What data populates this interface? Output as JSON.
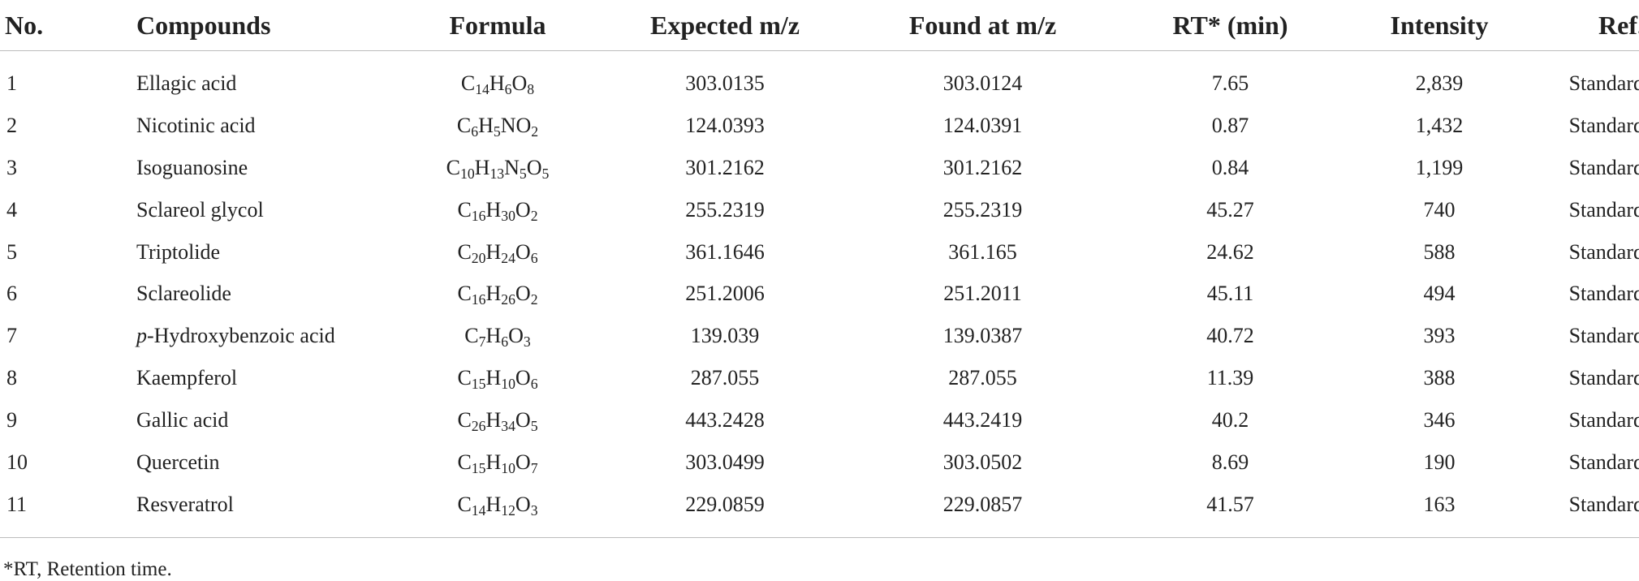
{
  "table": {
    "headers": [
      "No.",
      "Compounds",
      "Formula",
      "Expected m/z",
      "Found at m/z",
      "RT* (min)",
      "Intensity",
      "Ref."
    ],
    "rows": [
      {
        "no": "1",
        "compound_prefix": "",
        "compound": "Ellagic acid",
        "formula": [
          [
            "C",
            "14"
          ],
          [
            "H",
            "6"
          ],
          [
            "O",
            "8"
          ]
        ],
        "expected": "303.0135",
        "found": "303.0124",
        "rt": "7.65",
        "intensity": "2,839",
        "ref": "Standard"
      },
      {
        "no": "2",
        "compound_prefix": "",
        "compound": "Nicotinic acid",
        "formula": [
          [
            "C",
            "6"
          ],
          [
            "H",
            "5"
          ],
          [
            "N",
            ""
          ],
          [
            "O",
            "2"
          ]
        ],
        "expected": "124.0393",
        "found": "124.0391",
        "rt": "0.87",
        "intensity": "1,432",
        "ref": "Standard"
      },
      {
        "no": "3",
        "compound_prefix": "",
        "compound": "Isoguanosine",
        "formula": [
          [
            "C",
            "10"
          ],
          [
            "H",
            "13"
          ],
          [
            "N",
            "5"
          ],
          [
            "O",
            "5"
          ]
        ],
        "expected": "301.2162",
        "found": "301.2162",
        "rt": "0.84",
        "intensity": "1,199",
        "ref": "Standard"
      },
      {
        "no": "4",
        "compound_prefix": "",
        "compound": "Sclareol glycol",
        "formula": [
          [
            "C",
            "16"
          ],
          [
            "H",
            "30"
          ],
          [
            "O",
            "2"
          ]
        ],
        "expected": "255.2319",
        "found": "255.2319",
        "rt": "45.27",
        "intensity": "740",
        "ref": "Standard"
      },
      {
        "no": "5",
        "compound_prefix": "",
        "compound": "Triptolide",
        "formula": [
          [
            "C",
            "20"
          ],
          [
            "H",
            "24"
          ],
          [
            "O",
            "6"
          ]
        ],
        "expected": "361.1646",
        "found": "361.165",
        "rt": "24.62",
        "intensity": "588",
        "ref": "Standard"
      },
      {
        "no": "6",
        "compound_prefix": "",
        "compound": "Sclareolide",
        "formula": [
          [
            "C",
            "16"
          ],
          [
            "H",
            "26"
          ],
          [
            "O",
            "2"
          ]
        ],
        "expected": "251.2006",
        "found": "251.2011",
        "rt": "45.11",
        "intensity": "494",
        "ref": "Standard"
      },
      {
        "no": "7",
        "compound_prefix": "p",
        "compound": "-Hydroxybenzoic acid",
        "formula": [
          [
            "C",
            "7"
          ],
          [
            "H",
            "6"
          ],
          [
            "O",
            "3"
          ]
        ],
        "expected": "139.039",
        "found": "139.0387",
        "rt": "40.72",
        "intensity": "393",
        "ref": "Standard"
      },
      {
        "no": "8",
        "compound_prefix": "",
        "compound": "Kaempferol",
        "formula": [
          [
            "C",
            "15"
          ],
          [
            "H",
            "10"
          ],
          [
            "O",
            "6"
          ]
        ],
        "expected": "287.055",
        "found": "287.055",
        "rt": "11.39",
        "intensity": "388",
        "ref": "Standard"
      },
      {
        "no": "9",
        "compound_prefix": "",
        "compound": "Gallic acid",
        "formula": [
          [
            "C",
            "26"
          ],
          [
            "H",
            "34"
          ],
          [
            "O",
            "5"
          ]
        ],
        "expected": "443.2428",
        "found": "443.2419",
        "rt": "40.2",
        "intensity": "346",
        "ref": "Standard"
      },
      {
        "no": "10",
        "compound_prefix": "",
        "compound": "Quercetin",
        "formula": [
          [
            "C",
            "15"
          ],
          [
            "H",
            "10"
          ],
          [
            "O",
            "7"
          ]
        ],
        "expected": "303.0499",
        "found": "303.0502",
        "rt": "8.69",
        "intensity": "190",
        "ref": "Standard"
      },
      {
        "no": "11",
        "compound_prefix": "",
        "compound": "Resveratrol",
        "formula": [
          [
            "C",
            "14"
          ],
          [
            "H",
            "12"
          ],
          [
            "O",
            "3"
          ]
        ],
        "expected": "229.0859",
        "found": "229.0857",
        "rt": "41.57",
        "intensity": "163",
        "ref": "Standard"
      }
    ]
  },
  "footnote": "*RT, Retention time."
}
